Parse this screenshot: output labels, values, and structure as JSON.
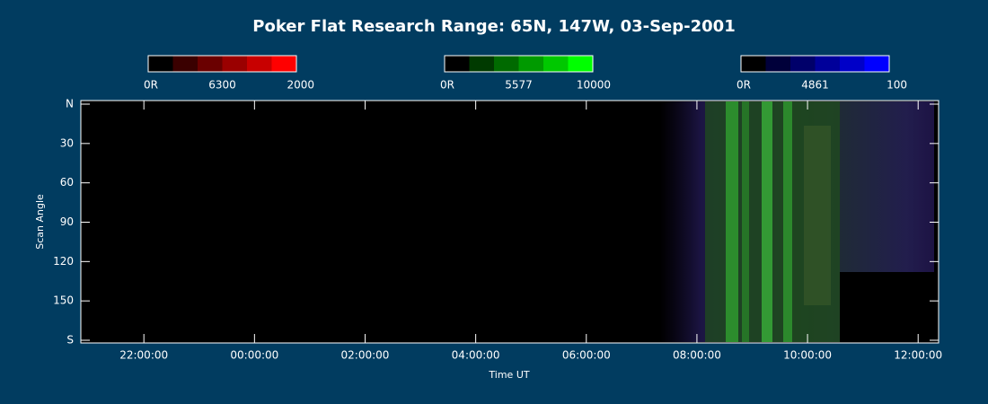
{
  "chart_data": {
    "type": "keogram",
    "title": "Poker Flat Research Range: 65N, 147W, 03-Sep-2001",
    "colorbars": [
      {
        "min_label": "0R",
        "wavelength": "6300",
        "max_label": "2000",
        "colors": [
          "#000000",
          "#3a0000",
          "#6a0000",
          "#9a0000",
          "#c80000",
          "#ff0000"
        ]
      },
      {
        "min_label": "0R",
        "wavelength": "5577",
        "max_label": "10000",
        "colors": [
          "#000000",
          "#003a00",
          "#006a00",
          "#009a00",
          "#00c800",
          "#00ff00"
        ]
      },
      {
        "min_label": "0R",
        "wavelength": "4861",
        "max_label": "100",
        "colors": [
          "#000000",
          "#00003a",
          "#00006a",
          "#00009a",
          "#0000c8",
          "#0000ff"
        ]
      }
    ],
    "y_label": "Scan Angle",
    "x_label": "Time UT",
    "ylim": [
      0,
      180
    ],
    "yticks": [
      {
        "value": 0,
        "label": "N"
      },
      30,
      60,
      90,
      120,
      150,
      {
        "value": 180,
        "label": "S"
      }
    ],
    "xlim": [
      20.86,
      36.37
    ],
    "xticks": [
      {
        "value": 22,
        "label": "22:00:00"
      },
      {
        "value": 24,
        "label": "00:00:00"
      },
      {
        "value": 26,
        "label": "02:00:00"
      },
      {
        "value": 28,
        "label": "04:00:00"
      },
      {
        "value": 30,
        "label": "06:00:00"
      },
      {
        "value": 32,
        "label": "08:00:00"
      },
      {
        "value": 34,
        "label": "10:00:00"
      },
      {
        "value": 36,
        "label": "12:00:00"
      }
    ]
  }
}
